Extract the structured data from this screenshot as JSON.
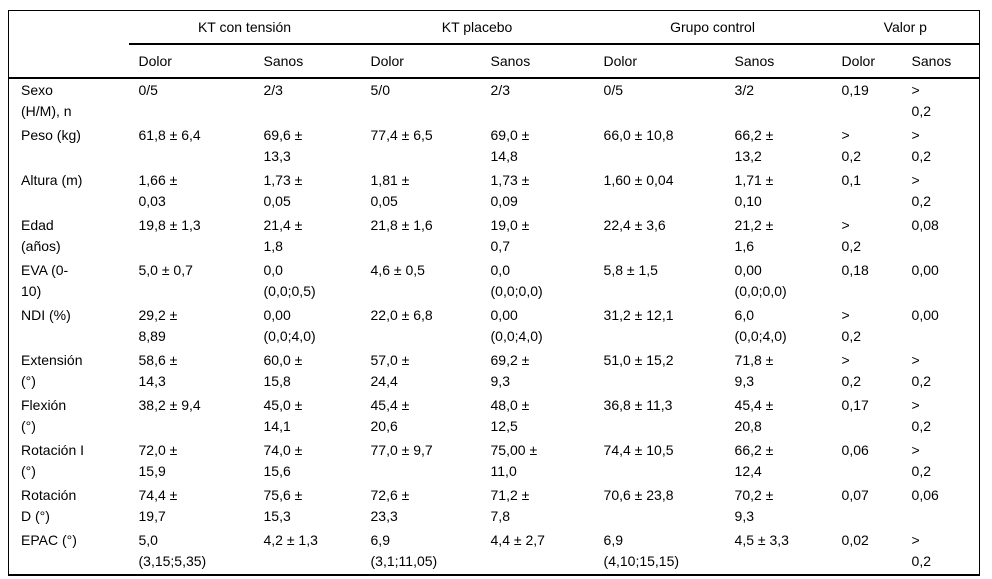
{
  "colors": {
    "background": "#ffffff",
    "text": "#000000",
    "rule": "#000000"
  },
  "table": {
    "column_groups": [
      {
        "label": "KT con tensión"
      },
      {
        "label": "KT placebo"
      },
      {
        "label": "Grupo control"
      },
      {
        "label": "Valor p"
      }
    ],
    "subheaders": [
      "Dolor",
      "Sanos",
      "Dolor",
      "Sanos",
      "Dolor",
      "Sanos",
      "Dolor",
      "Sanos"
    ],
    "rows": [
      {
        "label": "Sexo\n(H/M), n",
        "cells": [
          "0/5",
          "2/3",
          "5/0",
          "2/3",
          "0/5",
          "3/2",
          "0,19",
          ">\n0,2"
        ]
      },
      {
        "label": "Peso (kg)",
        "cells": [
          "61,8 ± 6,4",
          "69,6 ±\n13,3",
          "77,4 ± 6,5",
          "69,0 ±\n14,8",
          "66,0 ± 10,8",
          "66,2 ±\n13,2",
          ">\n0,2",
          ">\n0,2"
        ]
      },
      {
        "label": "Altura (m)",
        "cells": [
          "1,66 ±\n0,03",
          "1,73 ±\n0,05",
          "1,81 ±\n0,05",
          "1,73 ±\n0,09",
          "1,60 ± 0,04",
          "1,71 ±\n0,10",
          "0,1",
          ">\n0,2"
        ]
      },
      {
        "label": "Edad\n(años)",
        "cells": [
          "19,8 ± 1,3",
          "21,4 ±\n1,8",
          "21,8 ± 1,6",
          "19,0 ±\n0,7",
          "22,4 ± 3,6",
          "21,2 ±\n1,6",
          ">\n0,2",
          "0,08"
        ]
      },
      {
        "label": "EVA (0-\n10)",
        "cells": [
          "5,0 ± 0,7",
          "0,0\n(0,0;0,5)",
          "4,6 ± 0,5",
          "0,0\n(0,0;0,0)",
          "5,8 ± 1,5",
          "0,00\n(0,0;0,0)",
          "0,18",
          "0,00"
        ]
      },
      {
        "label": "NDI (%)",
        "cells": [
          "29,2 ±\n8,89",
          "0,00\n(0,0;4,0)",
          "22,0 ± 6,8",
          "0,00\n(0,0;4,0)",
          "31,2 ± 12,1",
          "6,0\n(0,0;4,0)",
          ">\n0,2",
          "0,00"
        ]
      },
      {
        "label": "Extensión\n(°)",
        "cells": [
          "58,6 ±\n14,3",
          "60,0 ±\n15,8",
          "57,0 ±\n24,4",
          "69,2 ±\n9,3",
          "51,0 ± 15,2",
          "71,8 ±\n9,3",
          ">\n0,2",
          ">\n0,2"
        ]
      },
      {
        "label": "Flexión\n(°)",
        "cells": [
          "38,2 ± 9,4",
          "45,0 ±\n14,1",
          "45,4 ±\n20,6",
          "48,0 ±\n12,5",
          "36,8 ± 11,3",
          "45,4 ±\n20,8",
          "0,17",
          ">\n0,2"
        ]
      },
      {
        "label": "Rotación I\n(°)",
        "cells": [
          "72,0 ±\n15,9",
          "74,0 ±\n15,6",
          "77,0 ± 9,7",
          "75,00 ±\n11,0",
          "74,4 ± 10,5",
          "66,2 ±\n12,4",
          "0,06",
          ">\n0,2"
        ]
      },
      {
        "label": "Rotación\nD (°)",
        "cells": [
          "74,4 ±\n19,7",
          "75,6 ±\n15,3",
          "72,6 ±\n23,3",
          "71,2 ±\n7,8",
          "70,6 ± 23,8",
          "70,2 ±\n9,3",
          "0,07",
          "0,06"
        ]
      },
      {
        "label": "EPAC (°)",
        "cells": [
          "5,0\n(3,15;5,35)",
          "4,2 ± 1,3",
          "6,9\n(3,1;11,05)",
          "4,4 ± 2,7",
          "6,9\n(4,10;15,15)",
          "4,5 ± 3,3",
          "0,02",
          ">\n0,2"
        ]
      }
    ]
  }
}
